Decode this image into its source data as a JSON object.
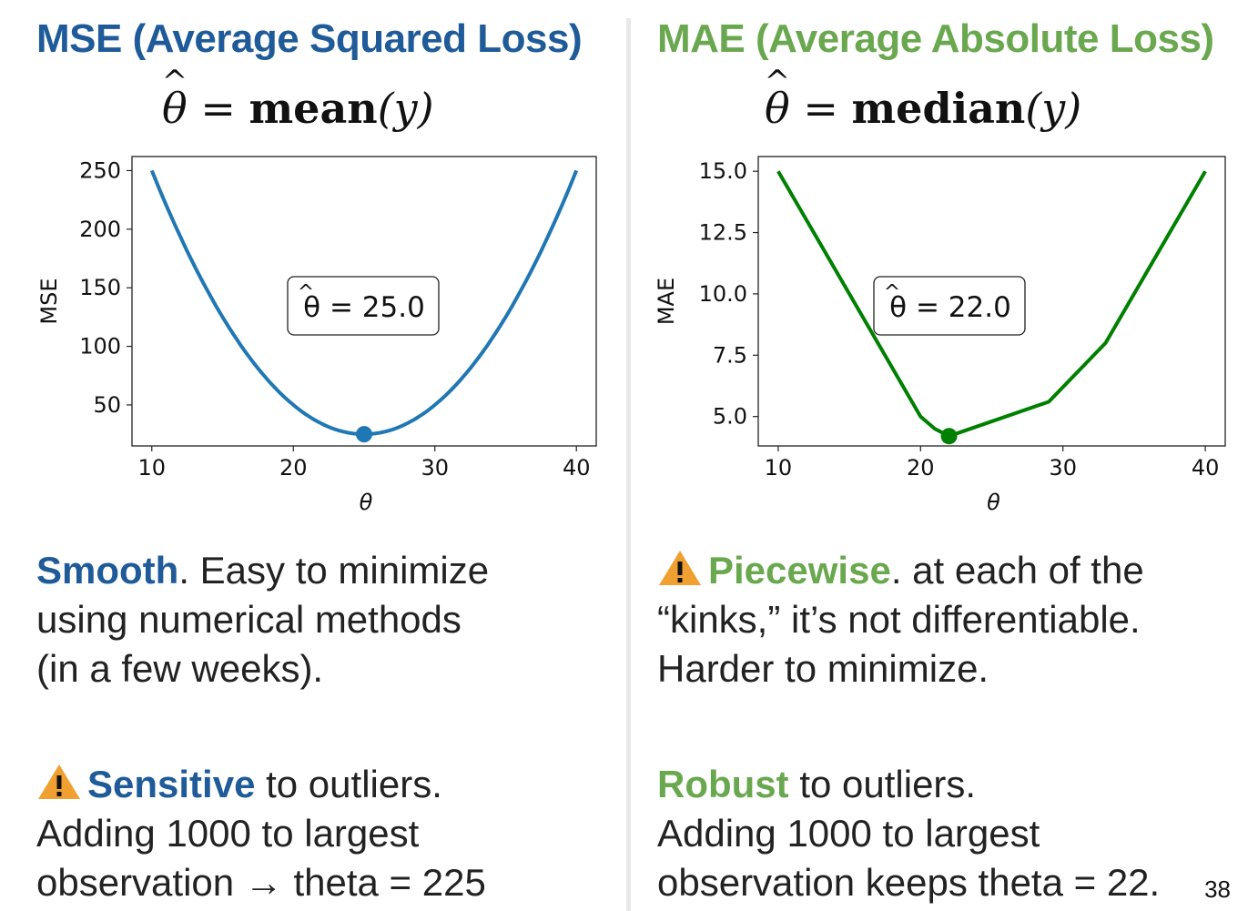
{
  "left": {
    "heading": "MSE (Average Squared Loss)",
    "formula": {
      "lhs": "θ",
      "eq": "=",
      "func": "mean",
      "arg": "(y)"
    },
    "para1": {
      "keyword": "Smooth",
      "lines": [
        ". Easy to minimize",
        "using numerical methods",
        "(in a few weeks)."
      ]
    },
    "para2": {
      "icon": "warning-icon",
      "keyword": "Sensitive",
      "lines": [
        " to outliers.",
        "Adding 1000 to largest",
        "observation → theta = 225"
      ]
    }
  },
  "right": {
    "heading": "MAE (Average Absolute Loss)",
    "formula": {
      "lhs": "θ",
      "eq": "=",
      "func": "median",
      "arg": "(y)"
    },
    "para1": {
      "icon": "warning-icon",
      "keyword": "Piecewise",
      "lines": [
        ". at each of the",
        "“kinks,” it’s not differentiable.",
        "Harder to minimize."
      ]
    },
    "para2": {
      "keyword": "Robust",
      "lines": [
        " to outliers.",
        "Adding 1000 to largest",
        "observation keeps theta = 22."
      ]
    }
  },
  "page_number": "38",
  "colors": {
    "left_heading": "#1f5b99",
    "right_heading": "#6aa84f",
    "mse_line": "#1f77b4",
    "mae_line": "#008000",
    "warning": "#f0a030"
  },
  "chart_data": [
    {
      "type": "line",
      "xlabel": "θ",
      "ylabel": "MSE",
      "xlim": [
        8.6,
        41.4
      ],
      "ylim": [
        15,
        262
      ],
      "xticks": [
        10,
        20,
        30,
        40
      ],
      "yticks": [
        50,
        100,
        150,
        200,
        250
      ],
      "ytick_labels": [
        "50",
        "100",
        "150",
        "200",
        "250"
      ],
      "color": "#1f77b4",
      "curve": {
        "kind": "quadratic",
        "vertex_x": 25,
        "vertex_y": 25,
        "a": 1.0,
        "x_range": [
          10,
          40
        ]
      },
      "point": {
        "x": 25,
        "y": 25
      },
      "annotation": "θ = 25.0"
    },
    {
      "type": "line",
      "xlabel": "θ",
      "ylabel": "MAE",
      "xlim": [
        8.6,
        41.4
      ],
      "ylim": [
        3.8,
        15.6
      ],
      "xticks": [
        10,
        20,
        30,
        40
      ],
      "yticks": [
        5.0,
        7.5,
        10.0,
        12.5,
        15.0
      ],
      "ytick_labels": [
        "5.0",
        "7.5",
        "10.0",
        "12.5",
        "15.0"
      ],
      "color": "#008000",
      "x": [
        10,
        20,
        21,
        22,
        29,
        33,
        40
      ],
      "y": [
        15.0,
        5.0,
        4.5,
        4.2,
        5.6,
        8.0,
        15.0
      ],
      "point": {
        "x": 22,
        "y": 4.2
      },
      "annotation": "θ = 22.0"
    }
  ]
}
